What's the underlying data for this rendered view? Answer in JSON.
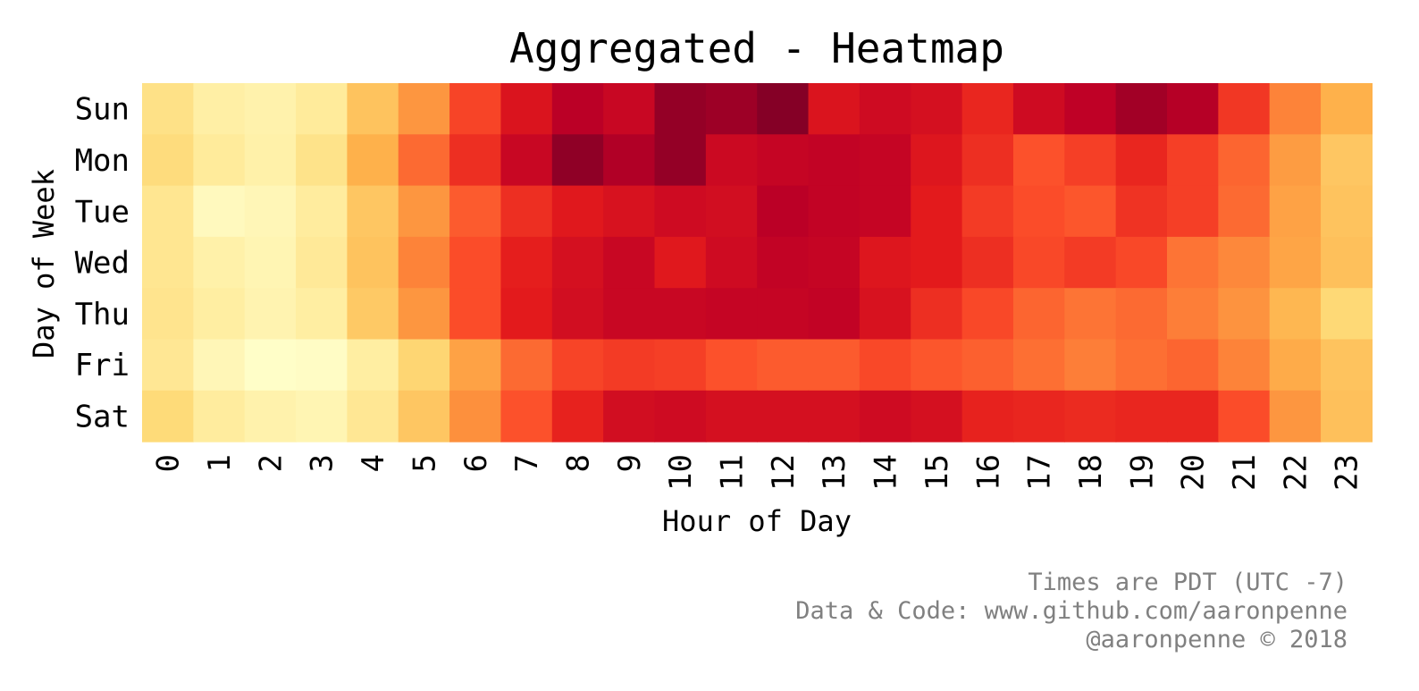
{
  "chart_data": {
    "type": "heatmap",
    "title": "Aggregated - Heatmap",
    "xlabel": "Hour of Day",
    "ylabel": "Day of Week",
    "x": [
      "0",
      "1",
      "2",
      "3",
      "4",
      "5",
      "6",
      "7",
      "8",
      "9",
      "10",
      "11",
      "12",
      "13",
      "14",
      "15",
      "16",
      "17",
      "18",
      "19",
      "20",
      "21",
      "22",
      "23"
    ],
    "y": [
      "Sun",
      "Mon",
      "Tue",
      "Wed",
      "Thu",
      "Fri",
      "Sat"
    ],
    "values": [
      [
        0.2,
        0.11,
        0.09,
        0.14,
        0.32,
        0.47,
        0.65,
        0.78,
        0.88,
        0.84,
        0.96,
        0.94,
        0.99,
        0.78,
        0.82,
        0.8,
        0.72,
        0.82,
        0.87,
        0.93,
        0.89,
        0.68,
        0.52,
        0.38
      ],
      [
        0.23,
        0.14,
        0.1,
        0.19,
        0.38,
        0.57,
        0.7,
        0.84,
        0.97,
        0.9,
        0.96,
        0.83,
        0.85,
        0.86,
        0.85,
        0.77,
        0.7,
        0.62,
        0.66,
        0.72,
        0.66,
        0.58,
        0.45,
        0.31
      ],
      [
        0.17,
        0.04,
        0.06,
        0.13,
        0.31,
        0.47,
        0.6,
        0.7,
        0.76,
        0.79,
        0.82,
        0.81,
        0.88,
        0.86,
        0.85,
        0.75,
        0.67,
        0.63,
        0.61,
        0.69,
        0.66,
        0.57,
        0.43,
        0.32
      ],
      [
        0.17,
        0.1,
        0.07,
        0.15,
        0.32,
        0.52,
        0.63,
        0.74,
        0.8,
        0.84,
        0.76,
        0.82,
        0.86,
        0.85,
        0.77,
        0.75,
        0.7,
        0.64,
        0.67,
        0.64,
        0.55,
        0.51,
        0.42,
        0.33
      ],
      [
        0.18,
        0.12,
        0.08,
        0.12,
        0.3,
        0.47,
        0.63,
        0.75,
        0.81,
        0.84,
        0.84,
        0.85,
        0.85,
        0.86,
        0.79,
        0.7,
        0.64,
        0.58,
        0.55,
        0.57,
        0.53,
        0.48,
        0.36,
        0.25
      ],
      [
        0.16,
        0.06,
        0.01,
        0.02,
        0.12,
        0.26,
        0.43,
        0.57,
        0.65,
        0.67,
        0.66,
        0.62,
        0.6,
        0.6,
        0.64,
        0.61,
        0.59,
        0.56,
        0.53,
        0.56,
        0.58,
        0.52,
        0.4,
        0.32
      ],
      [
        0.24,
        0.13,
        0.09,
        0.07,
        0.16,
        0.31,
        0.49,
        0.62,
        0.73,
        0.81,
        0.82,
        0.8,
        0.8,
        0.8,
        0.82,
        0.8,
        0.73,
        0.72,
        0.71,
        0.72,
        0.72,
        0.63,
        0.47,
        0.33
      ]
    ],
    "colormap": "YlOrRd",
    "colorbar": false,
    "grid": false,
    "annotations": [
      "Times are PDT (UTC -7)",
      "Data & Code: www.github.com/aaronpenne",
      "@aaronpenne © 2018"
    ]
  }
}
